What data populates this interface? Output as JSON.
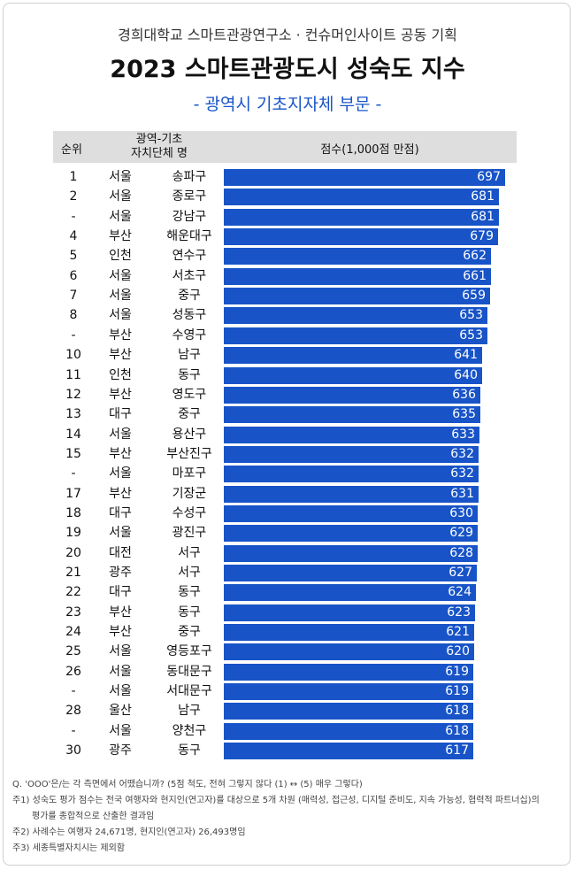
{
  "header": {
    "org_line": "경희대학교 스마트관광연구소 · 컨슈머인사이트 공동 기획",
    "title": "2023 스마트관광도시 성숙도 지수",
    "subtitle": "- 광역시 기초지자체 부문 -"
  },
  "table_header": {
    "rank": "순위",
    "region_line1": "광역-기초",
    "region_line2": "자치단체 명",
    "score": "점수(1,000점 만점)"
  },
  "colors": {
    "bar": "#1854c7",
    "subtitle": "#1a55c8",
    "header_bg": "#dedede"
  },
  "chart_data": {
    "type": "bar",
    "orientation": "horizontal",
    "xlim": [
      0,
      697
    ],
    "rows": [
      {
        "rank": "1",
        "province": "서울",
        "city": "송파구",
        "value": 697
      },
      {
        "rank": "2",
        "province": "서울",
        "city": "종로구",
        "value": 681
      },
      {
        "rank": "-",
        "province": "서울",
        "city": "강남구",
        "value": 681
      },
      {
        "rank": "4",
        "province": "부산",
        "city": "해운대구",
        "value": 679
      },
      {
        "rank": "5",
        "province": "인천",
        "city": "연수구",
        "value": 662
      },
      {
        "rank": "6",
        "province": "서울",
        "city": "서초구",
        "value": 661
      },
      {
        "rank": "7",
        "province": "서울",
        "city": "중구",
        "value": 659
      },
      {
        "rank": "8",
        "province": "서울",
        "city": "성동구",
        "value": 653
      },
      {
        "rank": "-",
        "province": "부산",
        "city": "수영구",
        "value": 653
      },
      {
        "rank": "10",
        "province": "부산",
        "city": "남구",
        "value": 641
      },
      {
        "rank": "11",
        "province": "인천",
        "city": "동구",
        "value": 640
      },
      {
        "rank": "12",
        "province": "부산",
        "city": "영도구",
        "value": 636
      },
      {
        "rank": "13",
        "province": "대구",
        "city": "중구",
        "value": 635
      },
      {
        "rank": "14",
        "province": "서울",
        "city": "용산구",
        "value": 633
      },
      {
        "rank": "15",
        "province": "부산",
        "city": "부산진구",
        "value": 632
      },
      {
        "rank": "-",
        "province": "서울",
        "city": "마포구",
        "value": 632
      },
      {
        "rank": "17",
        "province": "부산",
        "city": "기장군",
        "value": 631
      },
      {
        "rank": "18",
        "province": "대구",
        "city": "수성구",
        "value": 630
      },
      {
        "rank": "19",
        "province": "서울",
        "city": "광진구",
        "value": 629
      },
      {
        "rank": "20",
        "province": "대전",
        "city": "서구",
        "value": 628
      },
      {
        "rank": "21",
        "province": "광주",
        "city": "서구",
        "value": 627
      },
      {
        "rank": "22",
        "province": "대구",
        "city": "동구",
        "value": 624
      },
      {
        "rank": "23",
        "province": "부산",
        "city": "동구",
        "value": 623
      },
      {
        "rank": "24",
        "province": "부산",
        "city": "중구",
        "value": 621
      },
      {
        "rank": "25",
        "province": "서울",
        "city": "영등포구",
        "value": 620
      },
      {
        "rank": "26",
        "province": "서울",
        "city": "동대문구",
        "value": 619
      },
      {
        "rank": "-",
        "province": "서울",
        "city": "서대문구",
        "value": 619
      },
      {
        "rank": "28",
        "province": "울산",
        "city": "남구",
        "value": 618
      },
      {
        "rank": "-",
        "province": "서울",
        "city": "양천구",
        "value": 618
      },
      {
        "rank": "30",
        "province": "광주",
        "city": "동구",
        "value": 617
      }
    ]
  },
  "notes": {
    "q": "Q. 'OOO'은/는 각 측면에서 어땠습니까? (5점 척도, 전혀 그렇지 않다 (1) ↔ (5) 매우 그렇다)",
    "n1a": "주1) 성숙도 평가 점수는 전국 여행자와 현지인(연고자)를 대상으로 5개 차원 (매력성, 접근성, 디지털 준비도, 지속 가능성, 협력적 파트너십)의",
    "n1b": "평가를 종합적으로 산출한 결과임",
    "n2": "주2) 사례수는 여행자 24,671명, 현지인(연고자) 26,493명임",
    "n3": "주3) 세종특별자치시는 제외함"
  }
}
